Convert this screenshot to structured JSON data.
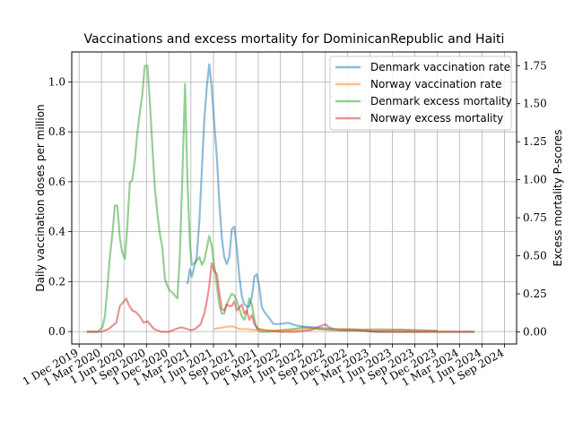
{
  "chart_data": {
    "type": "line",
    "title": "Vaccinations and excess mortality for DominicanRepublic and Haiti",
    "ylabel_left": "Daily vaccination doses per million",
    "ylabel_right": "Excess mortality P-scores",
    "xlabel": "",
    "ylim_left": [
      -0.05,
      1.12
    ],
    "ylim_right": [
      -0.08,
      1.84
    ],
    "xlim": [
      "2019-11-01",
      "2024-10-20"
    ],
    "grid": true,
    "legend_position": "top-right",
    "x_ticks": [
      "1 Dec 2019",
      "1 Mar 2020",
      "1 Jun 2020",
      "1 Sep 2020",
      "1 Dec 2020",
      "1 Mar 2021",
      "1 Jun 2021",
      "1 Sep 2021",
      "1 Dec 2021",
      "1 Mar 2022",
      "1 Jun 2022",
      "1 Sep 2022",
      "1 Dec 2022",
      "1 Mar 2023",
      "1 Jun 2023",
      "1 Sep 2023",
      "1 Dec 2023",
      "1 Mar 2024",
      "1 Jun 2024",
      "1 Sep 2024"
    ],
    "x_tick_dates": [
      "2019-12-01",
      "2020-03-01",
      "2020-06-01",
      "2020-09-01",
      "2020-12-01",
      "2021-03-01",
      "2021-06-01",
      "2021-09-01",
      "2021-12-01",
      "2022-03-01",
      "2022-06-01",
      "2022-09-01",
      "2022-12-01",
      "2023-03-01",
      "2023-06-01",
      "2023-09-01",
      "2023-12-01",
      "2024-03-01",
      "2024-06-01",
      "2024-09-01"
    ],
    "y_ticks_left": [
      "0.0",
      "0.2",
      "0.4",
      "0.6",
      "0.8",
      "1.0"
    ],
    "y_ticks_left_values": [
      0.0,
      0.2,
      0.4,
      0.6,
      0.8,
      1.0
    ],
    "y_ticks_right": [
      "0.00",
      "0.25",
      "0.50",
      "0.75",
      "1.00",
      "1.25",
      "1.50",
      "1.75"
    ],
    "y_ticks_right_values": [
      0.0,
      0.25,
      0.5,
      0.75,
      1.0,
      1.25,
      1.5,
      1.75
    ],
    "series": [
      {
        "name": "Denmark vaccination rate",
        "axis": "left",
        "color": "#1f77b4",
        "points": [
          [
            "2021-02-15",
            0.19
          ],
          [
            "2021-02-25",
            0.25
          ],
          [
            "2021-03-05",
            0.22
          ],
          [
            "2021-03-15",
            0.26
          ],
          [
            "2021-03-25",
            0.3
          ],
          [
            "2021-04-05",
            0.45
          ],
          [
            "2021-04-15",
            0.65
          ],
          [
            "2021-04-25",
            0.85
          ],
          [
            "2021-05-05",
            0.98
          ],
          [
            "2021-05-15",
            1.07
          ],
          [
            "2021-05-25",
            0.98
          ],
          [
            "2021-06-05",
            0.83
          ],
          [
            "2021-06-15",
            0.7
          ],
          [
            "2021-06-25",
            0.52
          ],
          [
            "2021-07-05",
            0.38
          ],
          [
            "2021-07-15",
            0.3
          ],
          [
            "2021-07-25",
            0.27
          ],
          [
            "2021-08-05",
            0.3
          ],
          [
            "2021-08-15",
            0.41
          ],
          [
            "2021-08-25",
            0.42
          ],
          [
            "2021-09-05",
            0.33
          ],
          [
            "2021-09-15",
            0.22
          ],
          [
            "2021-09-25",
            0.14
          ],
          [
            "2021-10-05",
            0.11
          ],
          [
            "2021-10-15",
            0.1
          ],
          [
            "2021-10-25",
            0.1
          ],
          [
            "2021-11-05",
            0.14
          ],
          [
            "2021-11-15",
            0.22
          ],
          [
            "2021-11-25",
            0.23
          ],
          [
            "2021-12-05",
            0.18
          ],
          [
            "2021-12-15",
            0.1
          ],
          [
            "2021-12-25",
            0.08
          ],
          [
            "2022-01-10",
            0.06
          ],
          [
            "2022-02-01",
            0.03
          ],
          [
            "2022-03-01",
            0.03
          ],
          [
            "2022-04-01",
            0.035
          ],
          [
            "2022-05-01",
            0.025
          ],
          [
            "2022-06-01",
            0.02
          ],
          [
            "2022-08-01",
            0.015
          ],
          [
            "2022-10-01",
            0.01
          ],
          [
            "2023-01-01",
            0.008
          ],
          [
            "2023-04-01",
            0.005
          ],
          [
            "2023-07-01",
            0.008
          ],
          [
            "2023-10-01",
            0.005
          ],
          [
            "2023-12-01",
            0.003
          ]
        ]
      },
      {
        "name": "Norway vaccination rate",
        "axis": "left",
        "color": "#ff7f0e",
        "points": [
          [
            "2021-06-01",
            0.01
          ],
          [
            "2021-07-01",
            0.015
          ],
          [
            "2021-08-01",
            0.02
          ],
          [
            "2021-08-20",
            0.02
          ],
          [
            "2021-09-15",
            0.01
          ],
          [
            "2021-10-15",
            0.01
          ],
          [
            "2021-12-01",
            0.005
          ],
          [
            "2022-02-01",
            0.005
          ],
          [
            "2022-04-01",
            0.005
          ],
          [
            "2022-06-01",
            0.01
          ],
          [
            "2022-08-01",
            0.01
          ],
          [
            "2022-10-01",
            0.008
          ],
          [
            "2022-12-01",
            0.01
          ],
          [
            "2023-02-01",
            0.008
          ],
          [
            "2023-04-01",
            0.01
          ],
          [
            "2023-06-01",
            0.008
          ],
          [
            "2023-09-01",
            0.005
          ],
          [
            "2023-12-01",
            0.003
          ]
        ]
      },
      {
        "name": "Denmark excess mortality",
        "axis": "right",
        "color": "#2ca02c",
        "points": [
          [
            "2020-01-01",
            0.0
          ],
          [
            "2020-02-15",
            0.0
          ],
          [
            "2020-03-05",
            0.03
          ],
          [
            "2020-03-15",
            0.1
          ],
          [
            "2020-03-25",
            0.28
          ],
          [
            "2020-04-05",
            0.5
          ],
          [
            "2020-04-15",
            0.65
          ],
          [
            "2020-04-25",
            0.83
          ],
          [
            "2020-05-05",
            0.83
          ],
          [
            "2020-05-15",
            0.62
          ],
          [
            "2020-05-25",
            0.52
          ],
          [
            "2020-06-05",
            0.48
          ],
          [
            "2020-06-15",
            0.7
          ],
          [
            "2020-06-25",
            0.98
          ],
          [
            "2020-07-05",
            1.0
          ],
          [
            "2020-07-15",
            1.12
          ],
          [
            "2020-07-25",
            1.3
          ],
          [
            "2020-08-05",
            1.45
          ],
          [
            "2020-08-15",
            1.56
          ],
          [
            "2020-08-25",
            1.75
          ],
          [
            "2020-09-05",
            1.75
          ],
          [
            "2020-09-15",
            1.5
          ],
          [
            "2020-09-25",
            1.22
          ],
          [
            "2020-10-05",
            0.95
          ],
          [
            "2020-10-15",
            0.78
          ],
          [
            "2020-10-25",
            0.65
          ],
          [
            "2020-11-05",
            0.55
          ],
          [
            "2020-11-15",
            0.35
          ],
          [
            "2020-11-25",
            0.3
          ],
          [
            "2020-12-05",
            0.27
          ],
          [
            "2020-12-15",
            0.26
          ],
          [
            "2020-12-25",
            0.24
          ],
          [
            "2021-01-05",
            0.22
          ],
          [
            "2021-01-15",
            0.5
          ],
          [
            "2021-01-25",
            1.0
          ],
          [
            "2021-02-05",
            1.63
          ],
          [
            "2021-02-15",
            1.0
          ],
          [
            "2021-02-25",
            0.58
          ],
          [
            "2021-03-05",
            0.44
          ],
          [
            "2021-03-15",
            0.45
          ],
          [
            "2021-03-25",
            0.47
          ],
          [
            "2021-04-05",
            0.49
          ],
          [
            "2021-04-15",
            0.44
          ],
          [
            "2021-04-25",
            0.47
          ],
          [
            "2021-05-05",
            0.55
          ],
          [
            "2021-05-15",
            0.63
          ],
          [
            "2021-05-25",
            0.57
          ],
          [
            "2021-06-05",
            0.43
          ],
          [
            "2021-06-15",
            0.3
          ],
          [
            "2021-06-25",
            0.18
          ],
          [
            "2021-07-05",
            0.12
          ],
          [
            "2021-07-15",
            0.12
          ],
          [
            "2021-07-25",
            0.18
          ],
          [
            "2021-08-05",
            0.22
          ],
          [
            "2021-08-15",
            0.25
          ],
          [
            "2021-08-25",
            0.24
          ],
          [
            "2021-09-05",
            0.2
          ],
          [
            "2021-09-15",
            0.15
          ],
          [
            "2021-09-25",
            0.1
          ],
          [
            "2021-10-05",
            0.08
          ],
          [
            "2021-10-15",
            0.13
          ],
          [
            "2021-10-25",
            0.22
          ],
          [
            "2021-11-05",
            0.18
          ],
          [
            "2021-11-15",
            0.08
          ],
          [
            "2021-11-25",
            0.02
          ],
          [
            "2021-12-10",
            0.0
          ],
          [
            "2022-01-15",
            0.0
          ],
          [
            "2022-03-01",
            0.01
          ],
          [
            "2022-05-01",
            0.02
          ],
          [
            "2022-06-01",
            0.03
          ],
          [
            "2022-08-01",
            0.02
          ],
          [
            "2022-10-01",
            0.01
          ],
          [
            "2023-01-01",
            0.01
          ],
          [
            "2023-04-01",
            0.0
          ],
          [
            "2023-07-01",
            0.0
          ],
          [
            "2023-10-01",
            0.0
          ],
          [
            "2024-01-01",
            0.0
          ],
          [
            "2024-05-01",
            0.0
          ]
        ]
      },
      {
        "name": "Norway excess mortality",
        "axis": "right",
        "color": "#d62728",
        "points": [
          [
            "2020-01-01",
            0.0
          ],
          [
            "2020-03-01",
            0.0
          ],
          [
            "2020-04-01",
            0.02
          ],
          [
            "2020-05-01",
            0.06
          ],
          [
            "2020-05-15",
            0.17
          ],
          [
            "2020-06-01",
            0.2
          ],
          [
            "2020-06-10",
            0.22
          ],
          [
            "2020-06-20",
            0.18
          ],
          [
            "2020-07-05",
            0.14
          ],
          [
            "2020-07-20",
            0.13
          ],
          [
            "2020-08-05",
            0.1
          ],
          [
            "2020-08-20",
            0.06
          ],
          [
            "2020-09-05",
            0.07
          ],
          [
            "2020-09-15",
            0.05
          ],
          [
            "2020-10-01",
            0.02
          ],
          [
            "2020-10-15",
            0.01
          ],
          [
            "2020-11-01",
            0.0
          ],
          [
            "2020-12-01",
            0.0
          ],
          [
            "2021-01-01",
            0.02
          ],
          [
            "2021-01-20",
            0.03
          ],
          [
            "2021-02-10",
            0.02
          ],
          [
            "2021-03-01",
            0.01
          ],
          [
            "2021-03-20",
            0.02
          ],
          [
            "2021-04-10",
            0.05
          ],
          [
            "2021-04-25",
            0.12
          ],
          [
            "2021-05-05",
            0.2
          ],
          [
            "2021-05-15",
            0.3
          ],
          [
            "2021-05-25",
            0.45
          ],
          [
            "2021-06-05",
            0.4
          ],
          [
            "2021-06-15",
            0.38
          ],
          [
            "2021-06-25",
            0.26
          ],
          [
            "2021-07-05",
            0.15
          ],
          [
            "2021-07-15",
            0.14
          ],
          [
            "2021-07-25",
            0.18
          ],
          [
            "2021-08-05",
            0.17
          ],
          [
            "2021-08-15",
            0.17
          ],
          [
            "2021-08-25",
            0.2
          ],
          [
            "2021-09-05",
            0.14
          ],
          [
            "2021-09-15",
            0.16
          ],
          [
            "2021-09-25",
            0.18
          ],
          [
            "2021-10-05",
            0.12
          ],
          [
            "2021-10-15",
            0.14
          ],
          [
            "2021-10-25",
            0.08
          ],
          [
            "2021-11-05",
            0.11
          ],
          [
            "2021-11-15",
            0.05
          ],
          [
            "2021-12-01",
            0.02
          ],
          [
            "2022-01-01",
            0.01
          ],
          [
            "2022-03-01",
            0.0
          ],
          [
            "2022-05-01",
            0.0
          ],
          [
            "2022-07-01",
            0.01
          ],
          [
            "2022-08-15",
            0.04
          ],
          [
            "2022-09-01",
            0.05
          ],
          [
            "2022-09-15",
            0.03
          ],
          [
            "2022-10-01",
            0.02
          ],
          [
            "2022-11-01",
            0.01
          ],
          [
            "2023-01-01",
            0.01
          ],
          [
            "2023-04-01",
            0.0
          ],
          [
            "2023-08-01",
            0.0
          ],
          [
            "2023-12-01",
            0.0
          ],
          [
            "2024-03-01",
            0.0
          ],
          [
            "2024-05-01",
            0.0
          ]
        ]
      }
    ]
  }
}
